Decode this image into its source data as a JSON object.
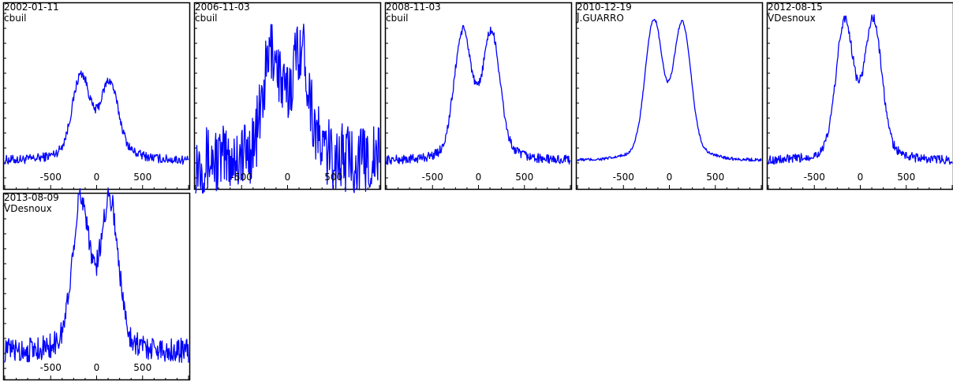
{
  "chart_data": [
    {
      "type": "line",
      "date": "2002-01-11",
      "observer": "cbuil",
      "peak_heights": [
        0.45,
        0.4
      ],
      "noise": 0.03,
      "baseline": 0.58,
      "tick_labels": [
        "-500",
        "0",
        "500"
      ],
      "xlim": [
        -1000,
        1000
      ],
      "color": "#0000ff"
    },
    {
      "type": "line",
      "date": "2006-11-03",
      "observer": "cbuil",
      "peak_heights": [
        0.6,
        0.63
      ],
      "noise": 0.22,
      "baseline": 0.5,
      "tick_labels": [
        "-500",
        "0",
        "500"
      ],
      "xlim": [
        -1000,
        1000
      ],
      "color": "#0000ff"
    },
    {
      "type": "line",
      "date": "2008-11-03",
      "observer": "cbuil",
      "peak_heights": [
        0.73,
        0.72
      ],
      "noise": 0.03,
      "baseline": 0.55,
      "tick_labels": [
        "-500",
        "0",
        "500"
      ],
      "xlim": [
        -1000,
        1000
      ],
      "color": "#0000ff"
    },
    {
      "type": "line",
      "date": "2010-12-19",
      "observer": "J.GUARRO",
      "peak_heights": [
        0.8,
        0.78
      ],
      "noise": 0.01,
      "baseline": 0.6,
      "tick_labels": [
        "-500",
        "0",
        "500"
      ],
      "xlim": [
        -1000,
        1000
      ],
      "color": "#0000ff"
    },
    {
      "type": "line",
      "date": "2012-08-15",
      "observer": "VDesnoux",
      "peak_heights": [
        0.8,
        0.8
      ],
      "noise": 0.03,
      "baseline": 0.6,
      "tick_labels": [
        "-500",
        "0",
        "500"
      ],
      "xlim": [
        -1000,
        1000
      ],
      "color": "#0000ff"
    },
    {
      "type": "line",
      "date": "2013-08-09",
      "observer": "VDesnoux",
      "peak_heights": [
        0.88,
        0.88
      ],
      "noise": 0.08,
      "baseline": 0.45,
      "tick_labels": [
        "-500",
        "0",
        "500"
      ],
      "xlim": [
        -1000,
        1000
      ],
      "color": "#0000ff"
    }
  ]
}
